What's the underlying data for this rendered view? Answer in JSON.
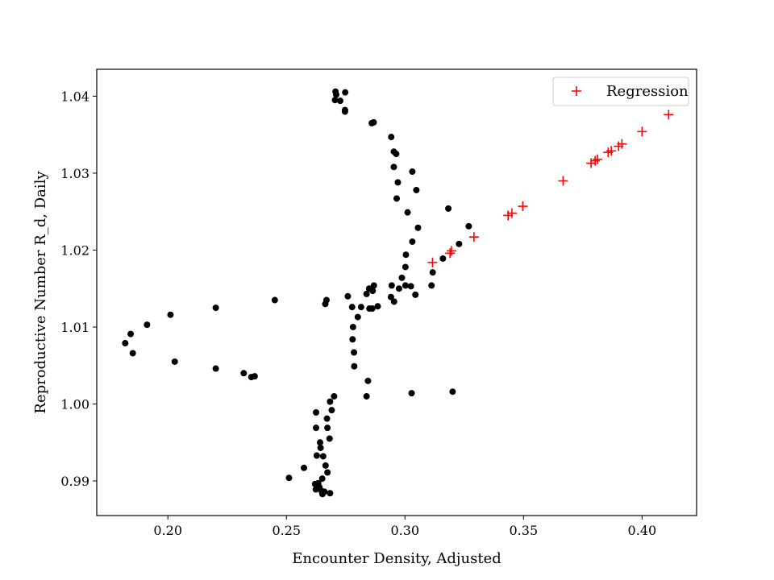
{
  "chart_data": {
    "type": "scatter",
    "title": "",
    "xlabel": "Encounter Density, Adjusted",
    "ylabel": "Reproductive Number R_d, Daily",
    "xlim": [
      0.17,
      0.423
    ],
    "ylim": [
      0.9855,
      1.0435
    ],
    "xticks": [
      0.2,
      0.25,
      0.3,
      0.35,
      0.4
    ],
    "xtick_labels": [
      "0.20",
      "0.25",
      "0.30",
      "0.35",
      "0.40"
    ],
    "yticks": [
      0.99,
      1.0,
      1.01,
      1.02,
      1.03,
      1.04
    ],
    "ytick_labels": [
      "0.99",
      "1.00",
      "1.01",
      "1.02",
      "1.03",
      "1.04"
    ],
    "grid": false,
    "legend_position": "top-right",
    "series": [
      {
        "color": "#000000",
        "marker": "dot",
        "points": [
          [
            0.2707,
            1.0406
          ],
          [
            0.271,
            1.0402
          ],
          [
            0.2748,
            1.0405
          ],
          [
            0.2705,
            1.0395
          ],
          [
            0.2727,
            1.0394
          ],
          [
            0.2747,
            1.0382
          ],
          [
            0.2747,
            1.038
          ],
          [
            0.286,
            1.0365
          ],
          [
            0.2868,
            1.0366
          ],
          [
            0.2942,
            1.0347
          ],
          [
            0.2953,
            1.0328
          ],
          [
            0.2963,
            1.0325
          ],
          [
            0.2953,
            1.0308
          ],
          [
            0.3031,
            1.0302
          ],
          [
            0.297,
            1.0288
          ],
          [
            0.3048,
            1.0278
          ],
          [
            0.2965,
            1.0267
          ],
          [
            0.3011,
            1.0249
          ],
          [
            0.3183,
            1.0254
          ],
          [
            0.3269,
            1.0231
          ],
          [
            0.3055,
            1.0229
          ],
          [
            0.3031,
            1.0211
          ],
          [
            0.3228,
            1.0208
          ],
          [
            0.3004,
            1.0194
          ],
          [
            0.316,
            1.0189
          ],
          [
            0.3002,
            1.0178
          ],
          [
            0.3117,
            1.0171
          ],
          [
            0.2987,
            1.0164
          ],
          [
            0.2944,
            1.0154
          ],
          [
            0.3002,
            1.0154
          ],
          [
            0.3025,
            1.0153
          ],
          [
            0.2975,
            1.015
          ],
          [
            0.3112,
            1.0154
          ],
          [
            0.3044,
            1.0142
          ],
          [
            0.2869,
            1.0154
          ],
          [
            0.2849,
            1.015
          ],
          [
            0.2864,
            1.0147
          ],
          [
            0.2838,
            1.0143
          ],
          [
            0.2941,
            1.0139
          ],
          [
            0.2954,
            1.0133
          ],
          [
            0.2759,
            1.014
          ],
          [
            0.2451,
            1.0135
          ],
          [
            0.2669,
            1.0135
          ],
          [
            0.2664,
            1.013
          ],
          [
            0.2885,
            1.0127
          ],
          [
            0.2777,
            1.0126
          ],
          [
            0.2815,
            1.0126
          ],
          [
            0.285,
            1.0124
          ],
          [
            0.2862,
            1.0124
          ],
          [
            0.2801,
            1.0113
          ],
          [
            0.2202,
            1.0125
          ],
          [
            0.2781,
            1.01
          ],
          [
            0.2779,
            1.0084
          ],
          [
            0.2785,
            1.0067
          ],
          [
            0.2786,
            1.0049
          ],
          [
            0.2011,
            1.0116
          ],
          [
            0.1912,
            1.0103
          ],
          [
            0.1843,
            1.0091
          ],
          [
            0.182,
            1.0079
          ],
          [
            0.1852,
            1.0066
          ],
          [
            0.2029,
            1.0055
          ],
          [
            0.2202,
            1.0046
          ],
          [
            0.232,
            1.004
          ],
          [
            0.2352,
            1.0035
          ],
          [
            0.2366,
            1.0036
          ],
          [
            0.2844,
            1.003
          ],
          [
            0.2838,
            1.001
          ],
          [
            0.3028,
            1.0014
          ],
          [
            0.3201,
            1.0016
          ],
          [
            0.2701,
            1.001
          ],
          [
            0.2684,
            1.0003
          ],
          [
            0.2691,
            0.9992
          ],
          [
            0.2625,
            0.9989
          ],
          [
            0.2671,
            0.9981
          ],
          [
            0.2625,
            0.9969
          ],
          [
            0.2673,
            0.9969
          ],
          [
            0.2682,
            0.9955
          ],
          [
            0.2642,
            0.995
          ],
          [
            0.2644,
            0.9943
          ],
          [
            0.2628,
            0.9933
          ],
          [
            0.2655,
            0.9932
          ],
          [
            0.2665,
            0.992
          ],
          [
            0.2574,
            0.9917
          ],
          [
            0.2673,
            0.9911
          ],
          [
            0.2651,
            0.9903
          ],
          [
            0.2511,
            0.9904
          ],
          [
            0.2634,
            0.9897
          ],
          [
            0.2621,
            0.9896
          ],
          [
            0.2639,
            0.9892
          ],
          [
            0.2624,
            0.9889
          ],
          [
            0.2648,
            0.9887
          ],
          [
            0.266,
            0.9886
          ],
          [
            0.2684,
            0.9884
          ],
          [
            0.2652,
            0.9883
          ]
        ]
      },
      {
        "name": "Regression",
        "color": "#ff0000",
        "marker": "plus",
        "points": [
          [
            0.3116,
            1.0184
          ],
          [
            0.319,
            1.0196
          ],
          [
            0.3196,
            1.0199
          ],
          [
            0.3291,
            1.0217
          ],
          [
            0.3435,
            1.0245
          ],
          [
            0.3451,
            1.0248
          ],
          [
            0.3497,
            1.0257
          ],
          [
            0.3667,
            1.029
          ],
          [
            0.3785,
            1.0313
          ],
          [
            0.3802,
            1.0316
          ],
          [
            0.3812,
            1.0318
          ],
          [
            0.3857,
            1.0327
          ],
          [
            0.387,
            1.0329
          ],
          [
            0.3901,
            1.0335
          ],
          [
            0.3915,
            1.0338
          ],
          [
            0.4,
            1.0354
          ],
          [
            0.4112,
            1.0376
          ]
        ]
      }
    ]
  }
}
